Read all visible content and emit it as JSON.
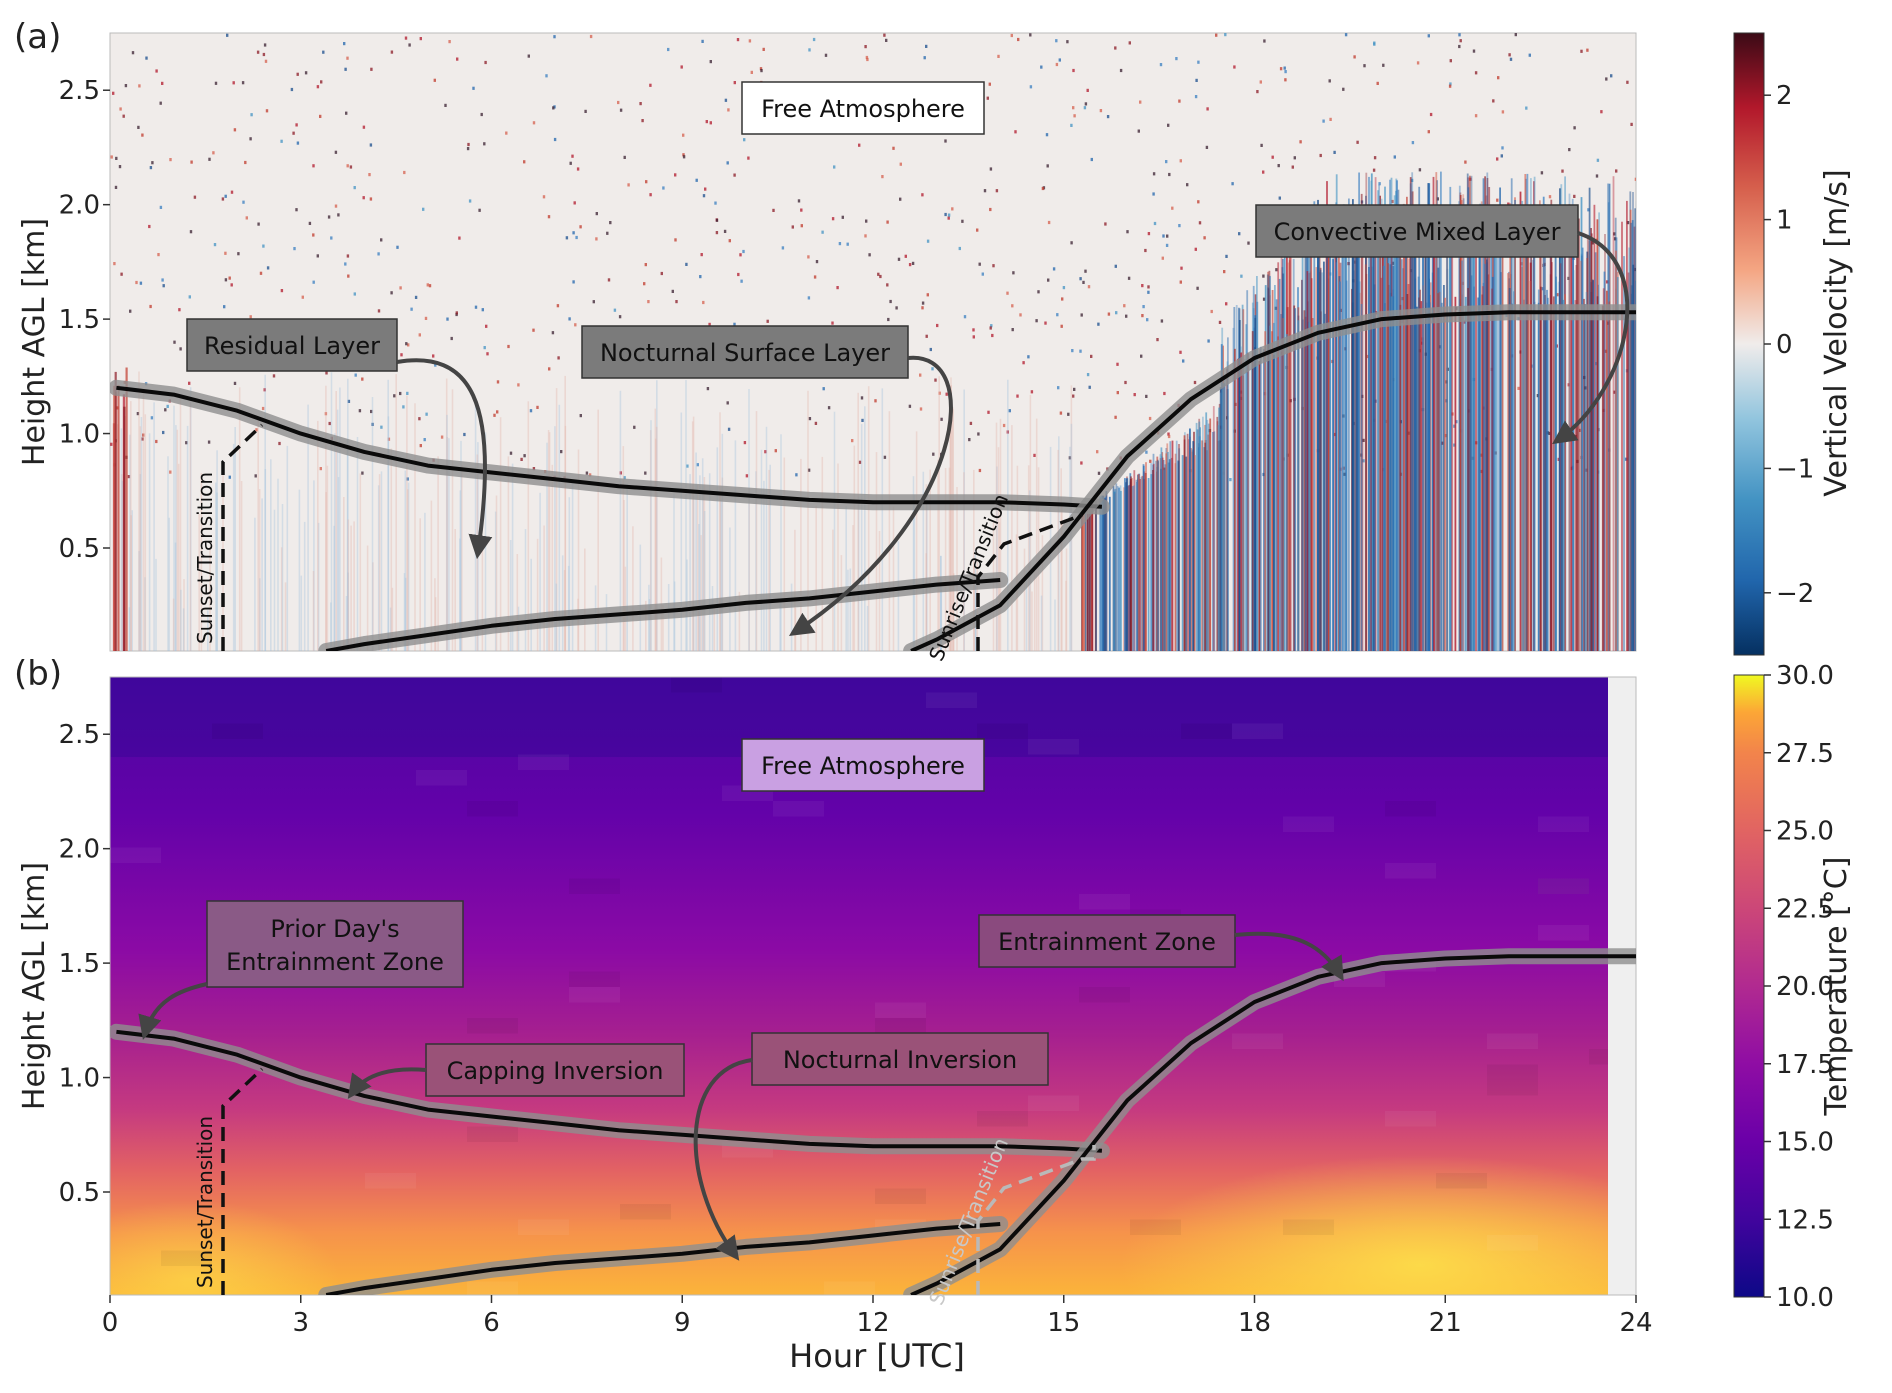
{
  "chart_data": [
    {
      "panel_label": "(a)",
      "type": "heatmap",
      "variable": "vertical_velocity",
      "ylabel": "Height AGL [km]",
      "xlim": [
        0,
        24
      ],
      "ylim": [
        0.05,
        2.75
      ],
      "yticks": [
        0.5,
        1.0,
        1.5,
        2.0,
        2.5
      ],
      "ytick_labels": [
        "0.5",
        "1.0",
        "1.5",
        "2.0",
        "2.5"
      ],
      "colorbar": {
        "label": "Vertical Velocity [m/s]",
        "range": [
          -2.5,
          2.5
        ],
        "ticks": [
          -2,
          -1,
          0,
          1,
          2
        ],
        "tick_labels": [
          "−2",
          "−1",
          "0",
          "1",
          "2"
        ],
        "colormap": "RdBu_r"
      },
      "boundaries": [
        {
          "x": [
            0.1,
            1,
            2,
            3,
            4,
            5,
            6,
            7,
            8,
            9,
            10,
            11,
            12,
            13,
            14,
            15,
            15.6
          ],
          "y": [
            1.2,
            1.17,
            1.1,
            1.0,
            0.92,
            0.86,
            0.83,
            0.8,
            0.77,
            0.75,
            0.73,
            0.71,
            0.7,
            0.7,
            0.7,
            0.69,
            0.68
          ]
        },
        {
          "x": [
            3.4,
            4,
            5,
            6,
            7,
            8,
            9,
            10,
            11,
            12,
            13,
            14
          ],
          "y": [
            0.05,
            0.08,
            0.12,
            0.16,
            0.19,
            0.21,
            0.23,
            0.26,
            0.28,
            0.31,
            0.34,
            0.36
          ]
        },
        {
          "x": [
            12.6,
            13,
            14,
            15,
            16,
            17,
            18,
            19,
            20,
            21,
            22,
            23,
            24
          ],
          "y": [
            0.05,
            0.1,
            0.25,
            0.55,
            0.9,
            1.15,
            1.33,
            1.44,
            1.5,
            1.52,
            1.53,
            1.53,
            1.53
          ]
        }
      ],
      "annotations": [
        {
          "text": "Free Atmosphere",
          "x": 11.9,
          "y": 2.55
        },
        {
          "text": "Residual Layer",
          "x": 2.9,
          "y": 1.4
        },
        {
          "text": "Nocturnal Surface Layer",
          "x": 10.0,
          "y": 1.37
        },
        {
          "text": "Convective Mixed Layer",
          "x": 20.6,
          "y": 1.9
        },
        {
          "text": "Sunset/Transition",
          "x": 1.55,
          "y": 0.5
        },
        {
          "text": "Sunrise/Transition",
          "x": 13.6,
          "y": 0.47
        }
      ]
    },
    {
      "panel_label": "(b)",
      "type": "heatmap",
      "variable": "temperature",
      "xlabel": "Hour [UTC]",
      "ylabel": "Height AGL [km]",
      "xlim": [
        0,
        24
      ],
      "ylim": [
        0.05,
        2.75
      ],
      "xticks": [
        0,
        3,
        6,
        9,
        12,
        15,
        18,
        21,
        24
      ],
      "xtick_labels": [
        "0",
        "3",
        "6",
        "9",
        "12",
        "15",
        "18",
        "21",
        "24"
      ],
      "yticks": [
        0.5,
        1.0,
        1.5,
        2.0,
        2.5
      ],
      "ytick_labels": [
        "0.5",
        "1.0",
        "1.5",
        "2.0",
        "2.5"
      ],
      "colorbar": {
        "label": "Temperature [°C]",
        "range": [
          10.0,
          30.0
        ],
        "ticks": [
          10.0,
          12.5,
          15.0,
          17.5,
          20.0,
          22.5,
          25.0,
          27.5,
          30.0
        ],
        "tick_labels": [
          "10.0",
          "12.5",
          "15.0",
          "17.5",
          "20.0",
          "22.5",
          "25.0",
          "27.5",
          "30.0"
        ],
        "colormap": "plasma"
      },
      "boundaries": [
        {
          "x": [
            0.1,
            1,
            2,
            3,
            4,
            5,
            6,
            7,
            8,
            9,
            10,
            11,
            12,
            13,
            14,
            15,
            15.6
          ],
          "y": [
            1.2,
            1.17,
            1.1,
            1.0,
            0.92,
            0.86,
            0.83,
            0.8,
            0.77,
            0.75,
            0.73,
            0.71,
            0.7,
            0.7,
            0.7,
            0.69,
            0.68
          ]
        },
        {
          "x": [
            3.4,
            4,
            5,
            6,
            7,
            8,
            9,
            10,
            11,
            12,
            13,
            14
          ],
          "y": [
            0.05,
            0.08,
            0.12,
            0.16,
            0.19,
            0.21,
            0.23,
            0.26,
            0.28,
            0.31,
            0.34,
            0.36
          ]
        },
        {
          "x": [
            12.6,
            13,
            14,
            15,
            16,
            17,
            18,
            19,
            20,
            21,
            22,
            23,
            24
          ],
          "y": [
            0.05,
            0.1,
            0.25,
            0.55,
            0.9,
            1.15,
            1.33,
            1.44,
            1.5,
            1.52,
            1.53,
            1.53,
            1.53
          ]
        }
      ],
      "annotations": [
        {
          "text": "Free Atmosphere",
          "x": 11.9,
          "y": 2.53
        },
        {
          "text": "Prior Day's",
          "x": 3.5,
          "y": 1.67
        },
        {
          "text": "Entrainment Zone",
          "x": 3.5,
          "y": 1.52
        },
        {
          "text": "Entrainment Zone",
          "x": 15.8,
          "y": 1.6
        },
        {
          "text": "Capping Inversion",
          "x": 7.0,
          "y": 1.06
        },
        {
          "text": "Nocturnal Inversion",
          "x": 12.5,
          "y": 1.1
        },
        {
          "text": "Sunset/Transition",
          "x": 1.55,
          "y": 0.45
        },
        {
          "text": "Sunrise/Transition",
          "x": 13.6,
          "y": 0.38
        }
      ]
    }
  ]
}
